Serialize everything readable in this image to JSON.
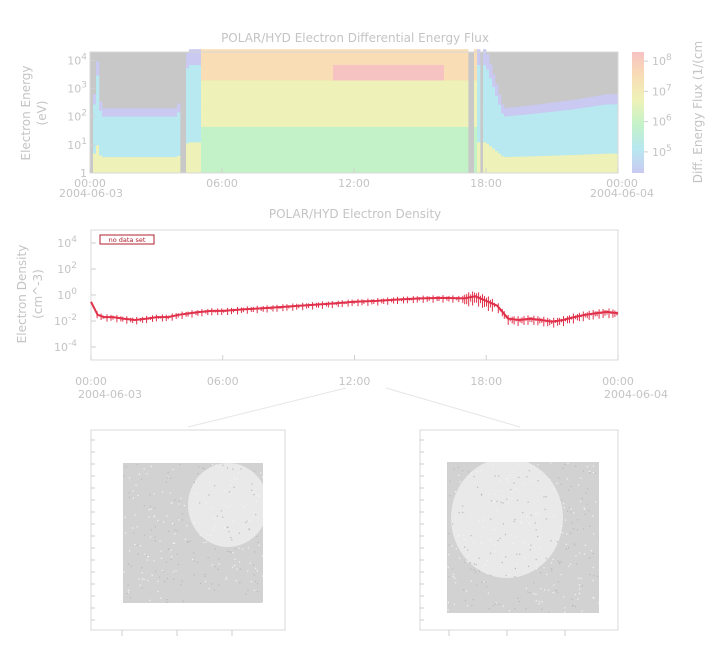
{
  "chart_data": [
    {
      "type": "heatmap",
      "title": "POLAR/HYD  Electron Differential Energy Flux",
      "ylabel_line1": "Electron Energy",
      "ylabel_line2": "(eV)",
      "x_ticks": [
        "00:00",
        "06:00",
        "12:00",
        "18:00",
        "00:00"
      ],
      "x_dates": [
        "2004-06-03",
        "2004-06-04"
      ],
      "y_log": true,
      "y_range": [
        1,
        20000
      ],
      "y_ticks": [
        {
          "base": "10",
          "exp": "4",
          "value": 10000
        },
        {
          "base": "10",
          "exp": "3",
          "value": 1000
        },
        {
          "base": "10",
          "exp": "2",
          "value": 100
        },
        {
          "base": "10",
          "exp": "1",
          "value": 10
        }
      ],
      "colorbar": {
        "label": "Diff. Energy Flux (1/(cm",
        "log": true,
        "range": [
          20000,
          200000000
        ],
        "ticks": [
          {
            "base": "10",
            "exp": "8",
            "value": 100000000
          },
          {
            "base": "10",
            "exp": "7",
            "value": 10000000
          },
          {
            "base": "10",
            "exp": "6",
            "value": 1000000
          },
          {
            "base": "10",
            "exp": "5",
            "value": 100000
          }
        ],
        "colors": [
          "#c9c9f2",
          "#b8e8f0",
          "#c4f2c8",
          "#eef2b8",
          "#f8ddb5",
          "#f7c2c2"
        ]
      },
      "no_data_color": "#c8c8c8",
      "data_gaps_hours": [
        [
          0,
          0.2
        ],
        [
          4.1,
          4.3
        ],
        [
          17.2,
          17.4
        ],
        [
          17.7,
          17.9
        ]
      ],
      "upper_boundary_log_energy": [
        {
          "t": 0.3,
          "v": 4.4
        },
        {
          "t": 0.5,
          "v": 2.3
        },
        {
          "t": 1.5,
          "v": 2.3
        },
        {
          "t": 3.0,
          "v": 2.3
        },
        {
          "t": 4.0,
          "v": 2.3
        },
        {
          "t": 4.2,
          "v": 3.8
        },
        {
          "t": 4.5,
          "v": 4.4
        },
        {
          "t": 17.0,
          "v": 4.4
        },
        {
          "t": 18.0,
          "v": 4.4
        },
        {
          "t": 18.8,
          "v": 2.3
        },
        {
          "t": 20.0,
          "v": 2.4
        },
        {
          "t": 22.0,
          "v": 2.6
        },
        {
          "t": 23.5,
          "v": 2.8
        }
      ]
    },
    {
      "type": "line",
      "title": "POLAR/HYD  Electron Density",
      "ylabel_line1": "Electron Density",
      "ylabel_line2": "(cm^-3)",
      "badge": "no data set",
      "x_ticks": [
        "00:00",
        "06:00",
        "12:00",
        "18:00",
        "00:00"
      ],
      "x_dates": [
        "2004-06-03",
        "2004-06-04"
      ],
      "y_log": true,
      "y_range": [
        1e-05,
        100000
      ],
      "y_ticks": [
        {
          "base": "10",
          "exp": "4",
          "value": 10000
        },
        {
          "base": "10",
          "exp": "2",
          "value": 100
        },
        {
          "base": "10",
          "exp": "0",
          "value": 1
        },
        {
          "base": "10",
          "exp": "-2",
          "value": 0.01
        },
        {
          "base": "10",
          "exp": "-4",
          "value": 0.0001
        }
      ],
      "series_color": "#e0304a",
      "x_hours": [
        0.0,
        0.3,
        0.6,
        1.0,
        1.5,
        2.0,
        2.5,
        3.0,
        3.5,
        4.0,
        4.5,
        5.0,
        5.5,
        6.0,
        7.0,
        8.0,
        9.0,
        10.0,
        11.0,
        12.0,
        13.0,
        14.0,
        15.0,
        16.0,
        17.0,
        17.5,
        18.0,
        18.5,
        19.0,
        19.5,
        20.0,
        20.5,
        21.0,
        21.5,
        22.0,
        22.5,
        23.0,
        23.5,
        24.0
      ],
      "values": [
        0.3,
        0.03,
        0.02,
        0.02,
        0.015,
        0.012,
        0.015,
        0.02,
        0.02,
        0.03,
        0.04,
        0.05,
        0.06,
        0.06,
        0.08,
        0.1,
        0.13,
        0.17,
        0.22,
        0.3,
        0.35,
        0.45,
        0.55,
        0.6,
        0.55,
        0.8,
        0.35,
        0.15,
        0.015,
        0.012,
        0.015,
        0.012,
        0.009,
        0.012,
        0.02,
        0.03,
        0.04,
        0.05,
        0.04
      ]
    }
  ],
  "images": [
    {
      "panel": "left-auroral-image"
    },
    {
      "panel": "right-auroral-image"
    }
  ]
}
